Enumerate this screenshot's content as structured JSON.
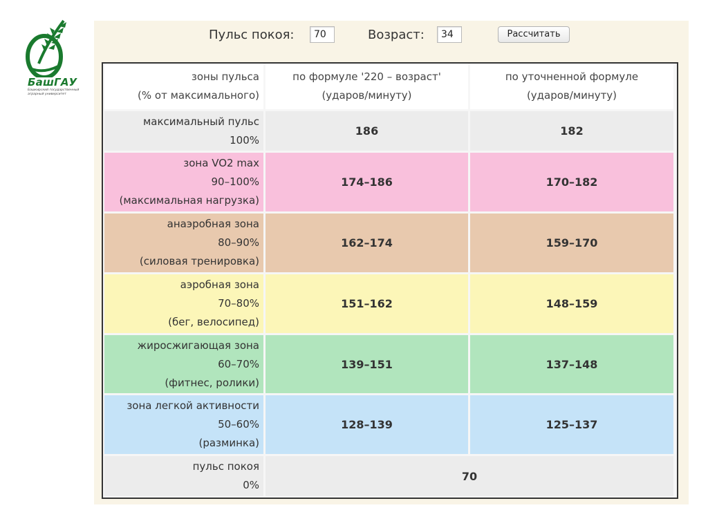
{
  "logo": {
    "name": "БашГАУ",
    "subtitle": "Башкирский государственный аграрный университет"
  },
  "controls": {
    "resting_pulse_label": "Пульс покоя:",
    "resting_pulse_value": "70",
    "age_label": "Возраст:",
    "age_value": "34",
    "calculate_button": "Рассчитать"
  },
  "table": {
    "header": {
      "col1": [
        "зоны пульса",
        "(% от максимального)"
      ],
      "col2": [
        "по формуле '220 – возраст'",
        "(ударов/минуту)"
      ],
      "col3": [
        "по уточненной формуле",
        "(ударов/минуту)"
      ]
    },
    "rows": [
      {
        "zone": [
          "максимальный пульс",
          "100%"
        ],
        "formula_220": "186",
        "refined": "182",
        "color": "#ececec"
      },
      {
        "zone": [
          "зона VO2 max",
          "90–100%",
          "(максимальная нагрузка)"
        ],
        "formula_220": "174–186",
        "refined": "170–182",
        "color": "#f9c0dc"
      },
      {
        "zone": [
          "анаэробная зона",
          "80–90%",
          "(силовая тренировка)"
        ],
        "formula_220": "162–174",
        "refined": "159–170",
        "color": "#e8c9ae"
      },
      {
        "zone": [
          "аэробная зона",
          "70–80%",
          "(бег, велосипед)"
        ],
        "formula_220": "151–162",
        "refined": "148–159",
        "color": "#fcf6b8"
      },
      {
        "zone": [
          "жиросжигающая зона",
          "60–70%",
          "(фитнес, ролики)"
        ],
        "formula_220": "139–151",
        "refined": "137–148",
        "color": "#b1e5bd"
      },
      {
        "zone": [
          "зона легкой активности",
          "50–60%",
          "(разминка)"
        ],
        "formula_220": "128–139",
        "refined": "125–137",
        "color": "#c5e3f8"
      },
      {
        "zone": [
          "пульс покоя",
          "0%"
        ],
        "resting": "70",
        "color": "#ececec"
      }
    ]
  },
  "colors": {
    "panel_background": "#f9f4e6",
    "table_border": "#333333",
    "brand_green": "#1a7a2e"
  }
}
